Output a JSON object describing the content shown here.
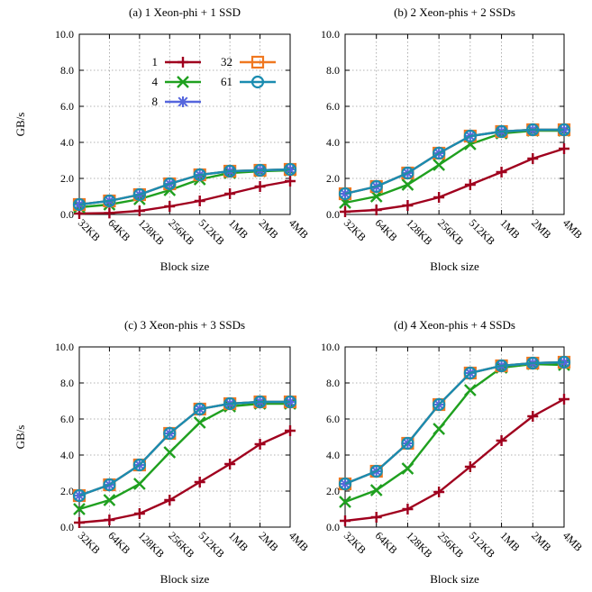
{
  "chart_data": [
    {
      "type": "line",
      "title": "(a) 1 Xeon-phi + 1 SSD",
      "xlabel": "Block size",
      "ylabel": "GB/s",
      "categories": [
        "32KB",
        "64KB",
        "128KB",
        "256KB",
        "512KB",
        "1MB",
        "2MB",
        "4MB"
      ],
      "ylim": [
        0,
        10
      ],
      "yticks": [
        "0.0",
        "2.0",
        "4.0",
        "6.0",
        "8.0",
        "10.0"
      ],
      "grid": true,
      "legend": "inside-top",
      "series": [
        {
          "name": "1",
          "color": "#a0001e",
          "marker": "plus",
          "values": [
            0.05,
            0.08,
            0.2,
            0.45,
            0.75,
            1.15,
            1.55,
            1.85
          ]
        },
        {
          "name": "4",
          "color": "#1fa01f",
          "marker": "cross",
          "values": [
            0.4,
            0.55,
            0.85,
            1.35,
            1.95,
            2.3,
            2.4,
            2.45
          ]
        },
        {
          "name": "8",
          "color": "#5566dd",
          "marker": "asterisk",
          "values": [
            0.55,
            0.75,
            1.1,
            1.7,
            2.2,
            2.4,
            2.45,
            2.5
          ]
        },
        {
          "name": "32",
          "color": "#f07820",
          "marker": "square",
          "values": [
            0.55,
            0.75,
            1.1,
            1.7,
            2.2,
            2.4,
            2.45,
            2.5
          ]
        },
        {
          "name": "61",
          "color": "#1a8cb0",
          "marker": "circle",
          "values": [
            0.55,
            0.75,
            1.1,
            1.7,
            2.2,
            2.4,
            2.45,
            2.5
          ]
        }
      ]
    },
    {
      "type": "line",
      "title": "(b) 2 Xeon-phis + 2 SSDs",
      "xlabel": "Block size",
      "ylabel": "",
      "categories": [
        "32KB",
        "64KB",
        "128KB",
        "256KB",
        "512KB",
        "1MB",
        "2MB",
        "4MB"
      ],
      "ylim": [
        0,
        10
      ],
      "yticks": [
        "0.0",
        "2.0",
        "4.0",
        "6.0",
        "8.0",
        "10.0"
      ],
      "grid": true,
      "series": [
        {
          "name": "1",
          "color": "#a0001e",
          "marker": "plus",
          "values": [
            0.15,
            0.25,
            0.5,
            0.95,
            1.65,
            2.35,
            3.1,
            3.65
          ]
        },
        {
          "name": "4",
          "color": "#1fa01f",
          "marker": "cross",
          "values": [
            0.65,
            1.0,
            1.65,
            2.75,
            3.9,
            4.5,
            4.65,
            4.65
          ]
        },
        {
          "name": "8",
          "color": "#5566dd",
          "marker": "asterisk",
          "values": [
            1.15,
            1.55,
            2.3,
            3.4,
            4.35,
            4.6,
            4.7,
            4.7
          ]
        },
        {
          "name": "32",
          "color": "#f07820",
          "marker": "square",
          "values": [
            1.15,
            1.55,
            2.3,
            3.4,
            4.35,
            4.6,
            4.7,
            4.7
          ]
        },
        {
          "name": "61",
          "color": "#1a8cb0",
          "marker": "circle",
          "values": [
            1.15,
            1.55,
            2.3,
            3.4,
            4.35,
            4.6,
            4.7,
            4.7
          ]
        }
      ]
    },
    {
      "type": "line",
      "title": "(c) 3 Xeon-phis + 3 SSDs",
      "xlabel": "Block size",
      "ylabel": "GB/s",
      "categories": [
        "32KB",
        "64KB",
        "128KB",
        "256KB",
        "512KB",
        "1MB",
        "2MB",
        "4MB"
      ],
      "ylim": [
        0,
        10
      ],
      "yticks": [
        "0.0",
        "2.0",
        "4.0",
        "6.0",
        "8.0",
        "10.0"
      ],
      "grid": true,
      "series": [
        {
          "name": "1",
          "color": "#a0001e",
          "marker": "plus",
          "values": [
            0.25,
            0.4,
            0.75,
            1.5,
            2.5,
            3.5,
            4.6,
            5.35
          ]
        },
        {
          "name": "4",
          "color": "#1fa01f",
          "marker": "cross",
          "values": [
            1.0,
            1.5,
            2.4,
            4.15,
            5.8,
            6.7,
            6.85,
            6.85
          ]
        },
        {
          "name": "8",
          "color": "#5566dd",
          "marker": "asterisk",
          "values": [
            1.75,
            2.35,
            3.45,
            5.2,
            6.55,
            6.85,
            6.95,
            6.95
          ]
        },
        {
          "name": "32",
          "color": "#f07820",
          "marker": "square",
          "values": [
            1.75,
            2.35,
            3.45,
            5.2,
            6.55,
            6.85,
            6.95,
            6.95
          ]
        },
        {
          "name": "61",
          "color": "#1a8cb0",
          "marker": "circle",
          "values": [
            1.75,
            2.35,
            3.45,
            5.2,
            6.55,
            6.85,
            6.95,
            6.95
          ]
        }
      ]
    },
    {
      "type": "line",
      "title": "(d) 4 Xeon-phis + 4 SSDs",
      "xlabel": "Block size",
      "ylabel": "",
      "categories": [
        "32KB",
        "64KB",
        "128KB",
        "256KB",
        "512KB",
        "1MB",
        "2MB",
        "4MB"
      ],
      "ylim": [
        0,
        10
      ],
      "yticks": [
        "0.0",
        "2.0",
        "4.0",
        "6.0",
        "8.0",
        "10.0"
      ],
      "grid": true,
      "series": [
        {
          "name": "1",
          "color": "#a0001e",
          "marker": "plus",
          "values": [
            0.35,
            0.55,
            1.0,
            1.95,
            3.35,
            4.8,
            6.15,
            7.1
          ]
        },
        {
          "name": "4",
          "color": "#1fa01f",
          "marker": "cross",
          "values": [
            1.4,
            2.05,
            3.25,
            5.45,
            7.6,
            8.85,
            9.05,
            9.0
          ]
        },
        {
          "name": "8",
          "color": "#5566dd",
          "marker": "asterisk",
          "values": [
            2.4,
            3.1,
            4.65,
            6.8,
            8.55,
            8.95,
            9.1,
            9.15
          ]
        },
        {
          "name": "32",
          "color": "#f07820",
          "marker": "square",
          "values": [
            2.4,
            3.1,
            4.65,
            6.8,
            8.55,
            8.95,
            9.1,
            9.15
          ]
        },
        {
          "name": "61",
          "color": "#1a8cb0",
          "marker": "circle",
          "values": [
            2.4,
            3.1,
            4.65,
            6.8,
            8.55,
            8.95,
            9.1,
            9.15
          ]
        }
      ]
    }
  ]
}
